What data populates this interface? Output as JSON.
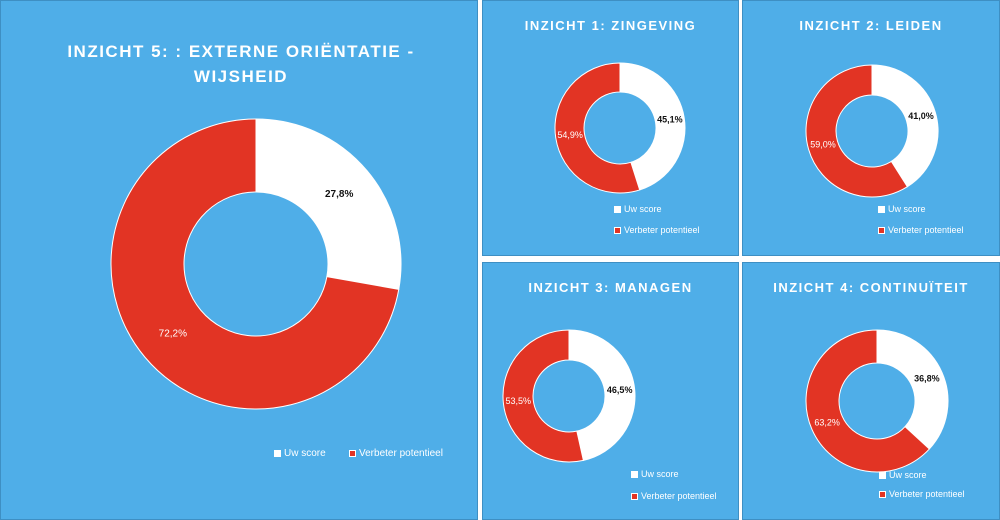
{
  "colors": {
    "background": "#4faee8",
    "score": "#ffffff",
    "potential": "#e23424"
  },
  "chart_data": [
    {
      "id": "p5",
      "type": "pie",
      "variant": "donut",
      "title": "INZICHT 5: : EXTERNE ORIËNTATIE - WIJSHEID",
      "categories": [
        "Uw score",
        "Verbeter potentieel"
      ],
      "values": [
        27.8,
        72.2
      ],
      "labels": [
        "27,8%",
        "72,2%"
      ],
      "legend": "bottom"
    },
    {
      "id": "p1",
      "type": "pie",
      "variant": "donut",
      "title": "INZICHT 1: ZINGEVING",
      "categories": [
        "Uw score",
        "Verbeter potentieel"
      ],
      "values": [
        45.1,
        54.9
      ],
      "labels": [
        "45,1%",
        "54,9%"
      ],
      "legend": "bottom"
    },
    {
      "id": "p2",
      "type": "pie",
      "variant": "donut",
      "title": "INZICHT 2: LEIDEN",
      "categories": [
        "Uw score",
        "Verbeter potentieel"
      ],
      "values": [
        41.0,
        59.0
      ],
      "labels": [
        "41,0%",
        "59,0%"
      ],
      "legend": "bottom"
    },
    {
      "id": "p3",
      "type": "pie",
      "variant": "donut",
      "title": "INZICHT 3: MANAGEN",
      "categories": [
        "Uw score",
        "Verbeter potentieel"
      ],
      "values": [
        46.5,
        53.5
      ],
      "labels": [
        "46,5%",
        "53,5%"
      ],
      "legend": "bottom"
    },
    {
      "id": "p4",
      "type": "pie",
      "variant": "donut",
      "title": "INZICHT 4: CONTINUÏTEIT",
      "categories": [
        "Uw score",
        "Verbeter potentieel"
      ],
      "values": [
        36.8,
        63.2
      ],
      "labels": [
        "36,8%",
        "63,2%"
      ],
      "legend": "bottom"
    }
  ]
}
